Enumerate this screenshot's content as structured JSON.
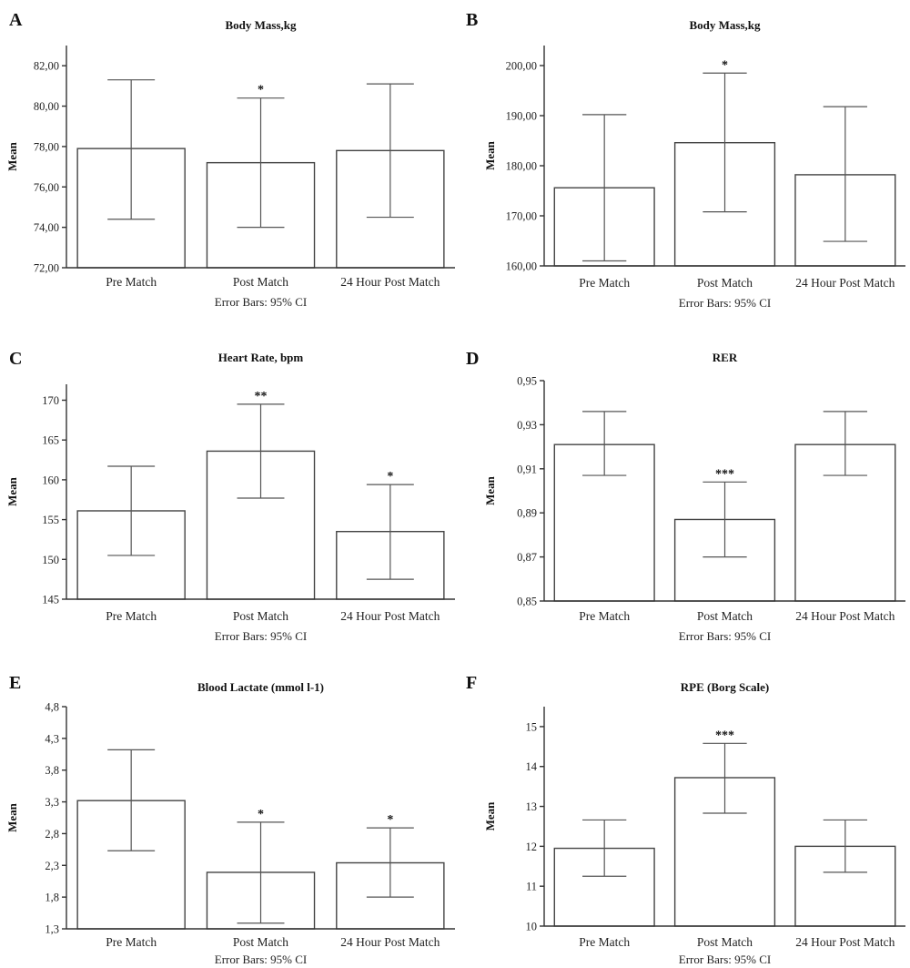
{
  "chart_data": [
    {
      "panel": "A",
      "type": "bar",
      "title": "Body Mass,kg",
      "ylabel": "Mean",
      "caption": "Error Bars: 95% CI",
      "categories": [
        "Pre Match",
        "Post Match",
        "24 Hour Post Match"
      ],
      "values": [
        77.9,
        77.2,
        77.8
      ],
      "ci_low": [
        74.4,
        74.0,
        74.5
      ],
      "ci_high": [
        81.3,
        80.4,
        81.1
      ],
      "significance": [
        "",
        "*",
        ""
      ],
      "ylim": [
        72,
        83
      ],
      "yticks": [
        72,
        74,
        76,
        78,
        80,
        82
      ],
      "ytick_labels": [
        "72,00",
        "74,00",
        "76,00",
        "78,00",
        "80,00",
        "82,00"
      ]
    },
    {
      "panel": "B",
      "type": "bar",
      "title": "Body Mass,kg",
      "ylabel": "Mean",
      "caption": "Error Bars: 95% CI",
      "categories": [
        "Pre Match",
        "Post Match",
        "24 Hour Post Match"
      ],
      "values": [
        175.6,
        184.6,
        178.2
      ],
      "ci_low": [
        161.0,
        170.8,
        164.9
      ],
      "ci_high": [
        190.2,
        198.5,
        191.8
      ],
      "significance": [
        "",
        "*",
        ""
      ],
      "ylim": [
        160,
        204
      ],
      "yticks": [
        160,
        170,
        180,
        190,
        200
      ],
      "ytick_labels": [
        "160,00",
        "170,00",
        "180,00",
        "190,00",
        "200,00"
      ]
    },
    {
      "panel": "C",
      "type": "bar",
      "title": "Heart Rate, bpm",
      "ylabel": "Mean",
      "caption": "Error Bars: 95% CI",
      "categories": [
        "Pre Match",
        "Post Match",
        "24 Hour Post Match"
      ],
      "values": [
        156.1,
        163.6,
        153.5
      ],
      "ci_low": [
        150.5,
        157.7,
        147.5
      ],
      "ci_high": [
        161.7,
        169.5,
        159.4
      ],
      "significance": [
        "",
        "**",
        "*"
      ],
      "ylim": [
        145,
        172
      ],
      "yticks": [
        145,
        150,
        155,
        160,
        165,
        170
      ],
      "ytick_labels": [
        "145",
        "150",
        "155",
        "160",
        "165",
        "170"
      ]
    },
    {
      "panel": "D",
      "type": "bar",
      "title": "RER",
      "ylabel": "Mean",
      "caption": "Error Bars: 95% CI",
      "categories": [
        "Pre Match",
        "Post Match",
        "24 Hour Post Match"
      ],
      "values": [
        0.921,
        0.887,
        0.921
      ],
      "ci_low": [
        0.907,
        0.87,
        0.907
      ],
      "ci_high": [
        0.936,
        0.904,
        0.936
      ],
      "significance": [
        "",
        "***",
        ""
      ],
      "ylim": [
        0.85,
        0.95
      ],
      "yticks": [
        0.85,
        0.87,
        0.89,
        0.91,
        0.93,
        0.95
      ],
      "ytick_labels": [
        "0,85",
        "0,87",
        "0,89",
        "0,91",
        "0,93",
        "0,95"
      ]
    },
    {
      "panel": "E",
      "type": "bar",
      "title": "Blood Lactate (mmol l-1)",
      "ylabel": "Mean",
      "caption": "Error Bars: 95% CI",
      "categories": [
        "Pre Match",
        "Post Match",
        "24 Hour Post Match"
      ],
      "values": [
        3.32,
        2.19,
        2.34
      ],
      "ci_low": [
        2.53,
        1.39,
        1.8
      ],
      "ci_high": [
        4.12,
        2.98,
        2.89
      ],
      "significance": [
        "",
        "*",
        "*"
      ],
      "ylim": [
        1.3,
        4.8
      ],
      "yticks": [
        1.3,
        1.8,
        2.3,
        2.8,
        3.3,
        3.8,
        4.3,
        4.8
      ],
      "ytick_labels": [
        "1,3",
        "1,8",
        "2,3",
        "2,8",
        "3,3",
        "3,8",
        "4,3",
        "4,8"
      ]
    },
    {
      "panel": "F",
      "type": "bar",
      "title": "RPE (Borg Scale)",
      "ylabel": "Mean",
      "caption": "Error Bars: 95% CI",
      "categories": [
        "Pre Match",
        "Post Match",
        "24 Hour Post Match"
      ],
      "values": [
        11.95,
        13.72,
        12.0
      ],
      "ci_low": [
        11.25,
        12.83,
        11.35
      ],
      "ci_high": [
        12.66,
        14.58,
        12.66
      ],
      "significance": [
        "",
        "***",
        ""
      ],
      "ylim": [
        10,
        15.5
      ],
      "yticks": [
        10,
        11,
        12,
        13,
        14,
        15
      ],
      "ytick_labels": [
        "10",
        "11",
        "12",
        "13",
        "14",
        "15"
      ]
    }
  ]
}
